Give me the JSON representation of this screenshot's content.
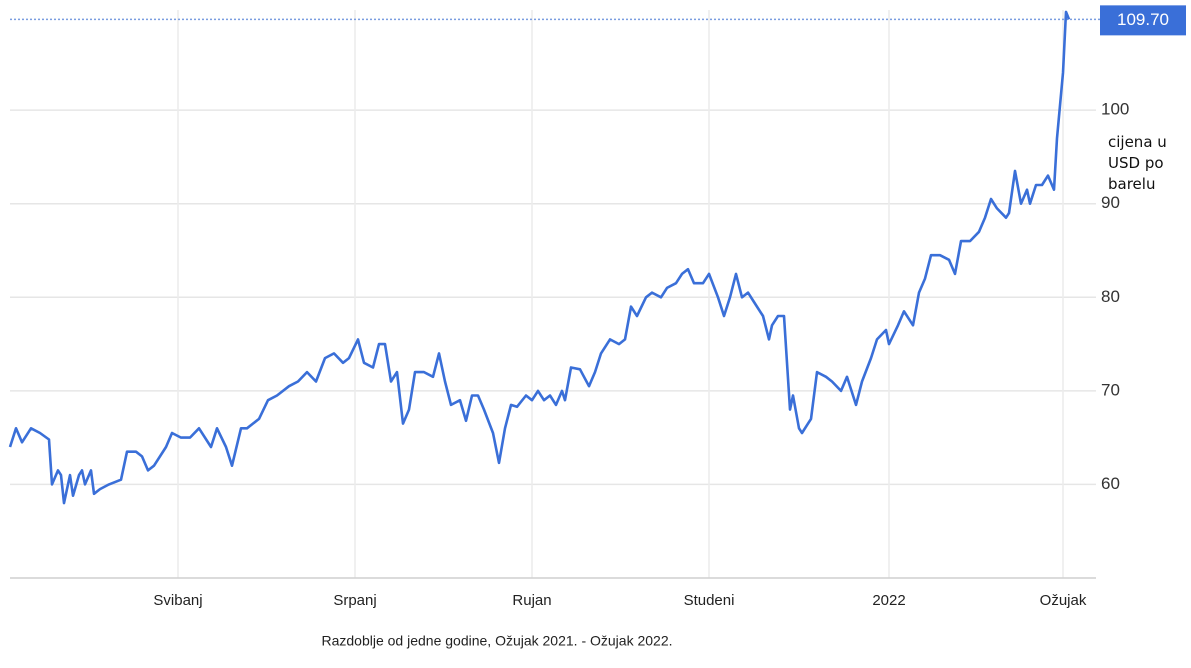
{
  "chart_data": {
    "type": "line",
    "y_label": "cijena u USD po barelu",
    "caption": "Razdoblje od jedne godine, Ožujak 2021. - Ožujak 2022.",
    "color": "#3a6fd8",
    "x": [
      0,
      2,
      4,
      7,
      10,
      13,
      14,
      16,
      17,
      18,
      20,
      21,
      23,
      24,
      25,
      27,
      28,
      30,
      33,
      37,
      39,
      42,
      44,
      46,
      48,
      52,
      54,
      57,
      60,
      63,
      67,
      69,
      72,
      74,
      77,
      79,
      83,
      86,
      89,
      93,
      96,
      99,
      102,
      105,
      108,
      111,
      113,
      116,
      118,
      121,
      123,
      125,
      127,
      129,
      131,
      133,
      135,
      138,
      141,
      143,
      145,
      147,
      150,
      152,
      154,
      156,
      158,
      161,
      163,
      165,
      167,
      169,
      172,
      174,
      176,
      178,
      180,
      182,
      184,
      185,
      187,
      190,
      193,
      195,
      197,
      200,
      203,
      205,
      207,
      209,
      212,
      214,
      217,
      219,
      222,
      224,
      226,
      228,
      231,
      233,
      236,
      238,
      240,
      242,
      244,
      246,
      248,
      251,
      253,
      254,
      256,
      258,
      260,
      261,
      263,
      264,
      266,
      267,
      269,
      272,
      274,
      277,
      279,
      282,
      284,
      287,
      289,
      292,
      293,
      296,
      298,
      301,
      303,
      305,
      307,
      310,
      313,
      315,
      317,
      320,
      323,
      325,
      327,
      329,
      332,
      333,
      335,
      337,
      339,
      340,
      342,
      344,
      346,
      348,
      349,
      351,
      352,
      353
    ],
    "values": [
      64,
      66,
      64.5,
      66,
      65.5,
      64.8,
      60,
      61.5,
      61,
      58,
      61,
      58.8,
      61,
      61.5,
      60,
      61.5,
      59,
      59.5,
      60,
      60.5,
      63.5,
      63.5,
      63,
      61.5,
      62,
      64,
      65.5,
      65,
      65,
      66,
      64,
      66,
      64,
      62,
      66,
      66,
      67,
      69,
      69.5,
      70.5,
      71,
      72,
      71,
      73.5,
      74,
      73,
      73.5,
      75.5,
      73,
      72.5,
      75,
      75,
      71,
      72,
      66.5,
      68,
      72,
      72,
      71.5,
      74,
      71,
      68.5,
      69,
      66.8,
      69.5,
      69.5,
      68,
      65.5,
      62.3,
      66,
      68.5,
      68.3,
      69.5,
      69,
      70,
      69,
      69.5,
      68.5,
      70,
      69,
      72.5,
      72.3,
      70.5,
      72,
      74,
      75.5,
      75,
      75.5,
      79,
      78,
      80,
      80.5,
      80,
      81,
      81.5,
      82.5,
      83,
      81.5,
      81.5,
      82.5,
      80,
      78,
      80,
      82.5,
      80,
      80.5,
      79.5,
      78,
      75.5,
      77,
      78,
      78,
      68,
      69.5,
      66,
      65.5,
      66.5,
      67,
      72,
      71.5,
      71,
      70,
      71.5,
      68.5,
      71,
      73.5,
      75.5,
      76.5,
      75,
      77,
      78.5,
      77,
      80.5,
      82,
      84.5,
      84.5,
      84,
      82.5,
      86,
      86,
      87,
      88.5,
      90.5,
      89.5,
      88.5,
      89,
      93.5,
      90,
      91.5,
      90,
      92,
      92,
      93,
      91.5,
      97,
      104,
      110.5,
      109.7
    ],
    "xlim": [
      0,
      362
    ],
    "xticks": [
      {
        "value": 56,
        "label": "Svibanj"
      },
      {
        "value": 115,
        "label": "Srpanj"
      },
      {
        "value": 174,
        "label": "Rujan"
      },
      {
        "value": 233,
        "label": "Studeni"
      },
      {
        "value": 293,
        "label": "2022"
      },
      {
        "value": 351,
        "label": "Ožujak"
      }
    ],
    "ylim": [
      50,
      110.7
    ],
    "yticks": [
      60,
      70,
      80,
      90,
      100
    ],
    "price_marker": {
      "value": 109.7,
      "label": "109.70"
    },
    "grid": true
  }
}
